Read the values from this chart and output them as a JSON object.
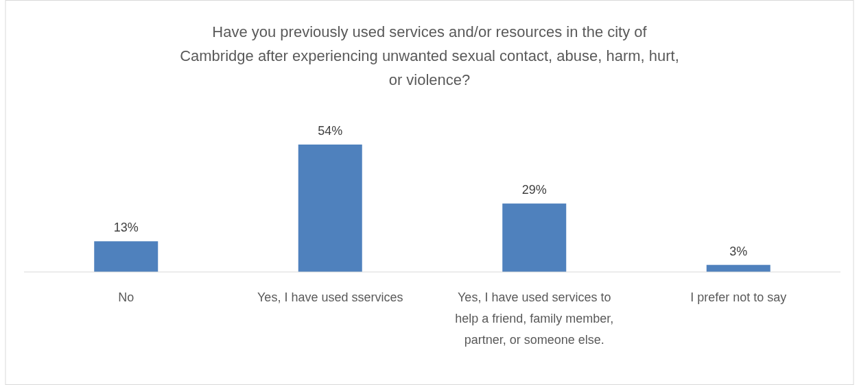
{
  "chart_data": {
    "type": "bar",
    "title": "Have you previously used services and/or resources in the city of Cambridge after experiencing unwanted sexual contact, abuse, harm, hurt, or violence?",
    "categories": [
      "No",
      "Yes, I have used sservices",
      "Yes, I have used services to help a friend, family member, partner, or someone else.",
      "I prefer not to say"
    ],
    "values": [
      13,
      54,
      29,
      3
    ],
    "value_labels": [
      "13%",
      "54%",
      "29%",
      "3%"
    ],
    "color": "#4f81bd"
  }
}
